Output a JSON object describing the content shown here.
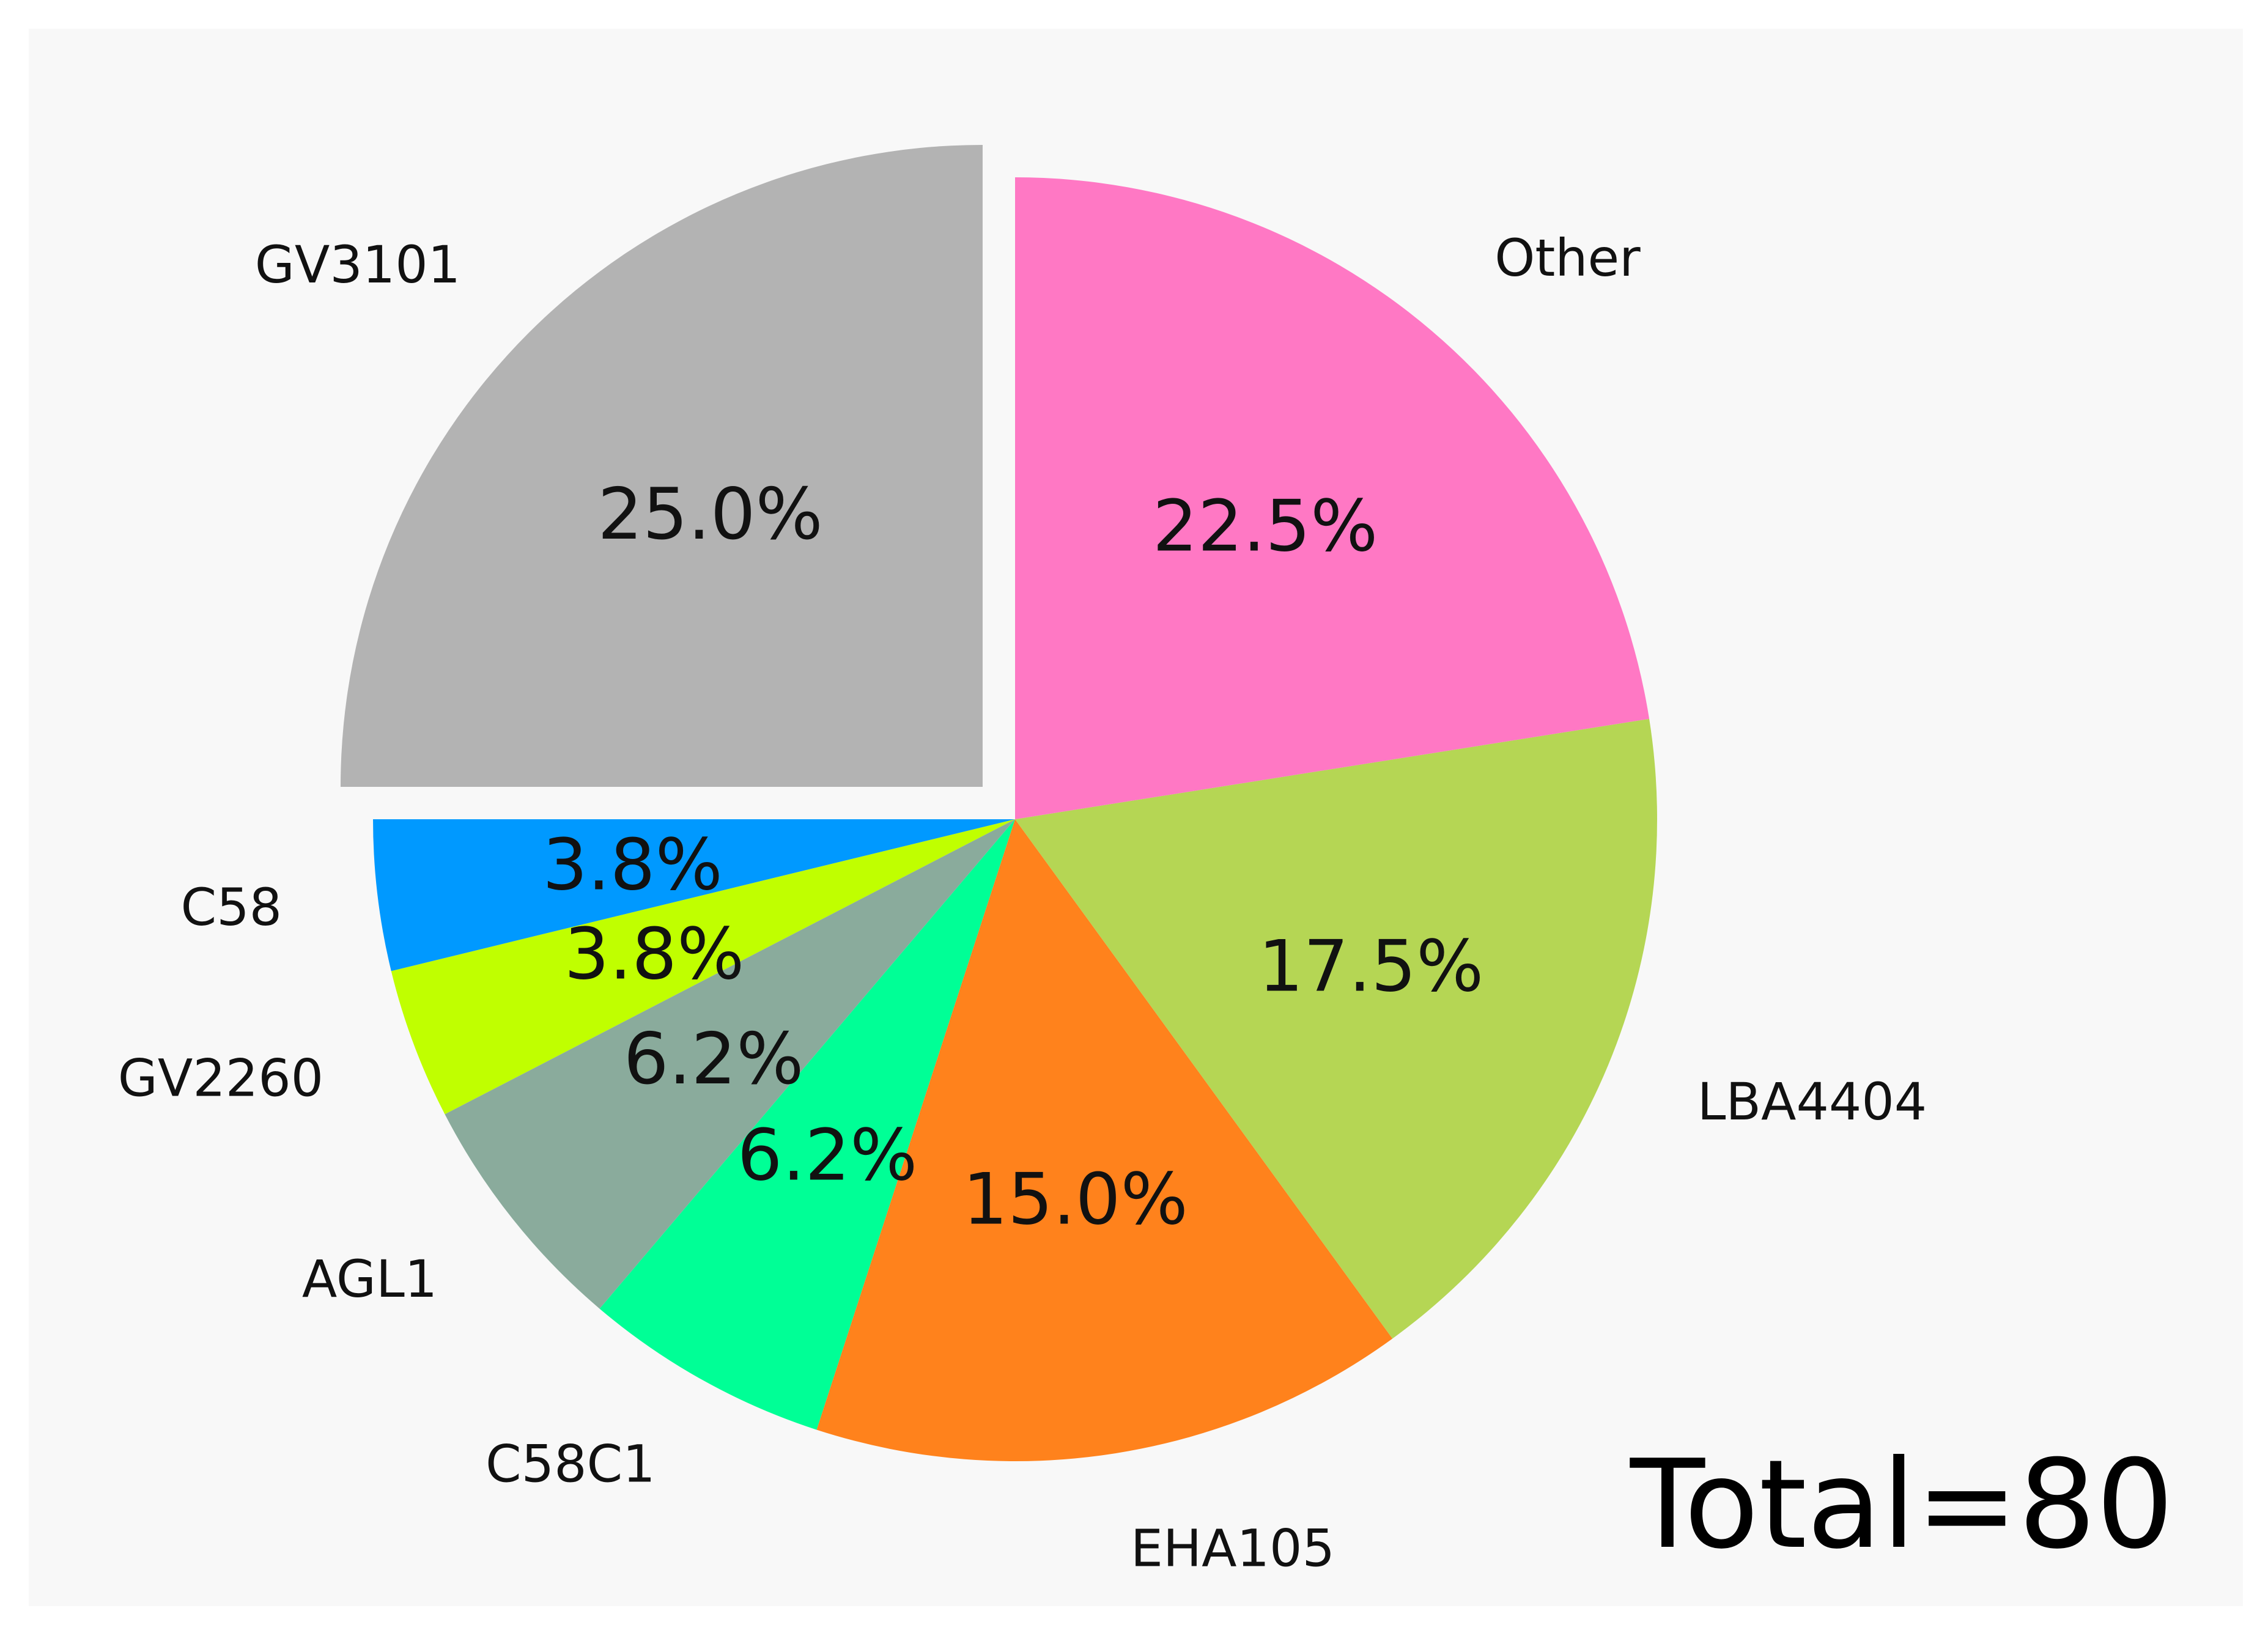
{
  "chart_data": {
    "type": "pie",
    "title": "",
    "start_angle_deg": 90,
    "direction": "counterclockwise",
    "slices": [
      {
        "label": "GV3101",
        "value": 25.0,
        "pct_label": "25.0%",
        "color": "#b3b3b3",
        "exploded": true
      },
      {
        "label": "C58",
        "value": 3.8,
        "pct_label": "3.8%",
        "color": "#0099ff",
        "exploded": false
      },
      {
        "label": "GV2260",
        "value": 3.8,
        "pct_label": "3.8%",
        "color": "#c0ff00",
        "exploded": false
      },
      {
        "label": "AGL1",
        "value": 6.2,
        "pct_label": "6.2%",
        "color": "#8aab9c",
        "exploded": false
      },
      {
        "label": "C58C1",
        "value": 6.2,
        "pct_label": "6.2%",
        "color": "#00ff96",
        "exploded": false
      },
      {
        "label": "EHA105",
        "value": 15.0,
        "pct_label": "15.0%",
        "color": "#ff821c",
        "exploded": false
      },
      {
        "label": "LBA4404",
        "value": 17.5,
        "pct_label": "17.5%",
        "color": "#b5d654",
        "exploded": false
      },
      {
        "label": "Other",
        "value": 22.5,
        "pct_label": "22.5%",
        "color": "#ff78c4",
        "exploded": false
      }
    ],
    "annotation": "Total=80",
    "legend": "none"
  }
}
